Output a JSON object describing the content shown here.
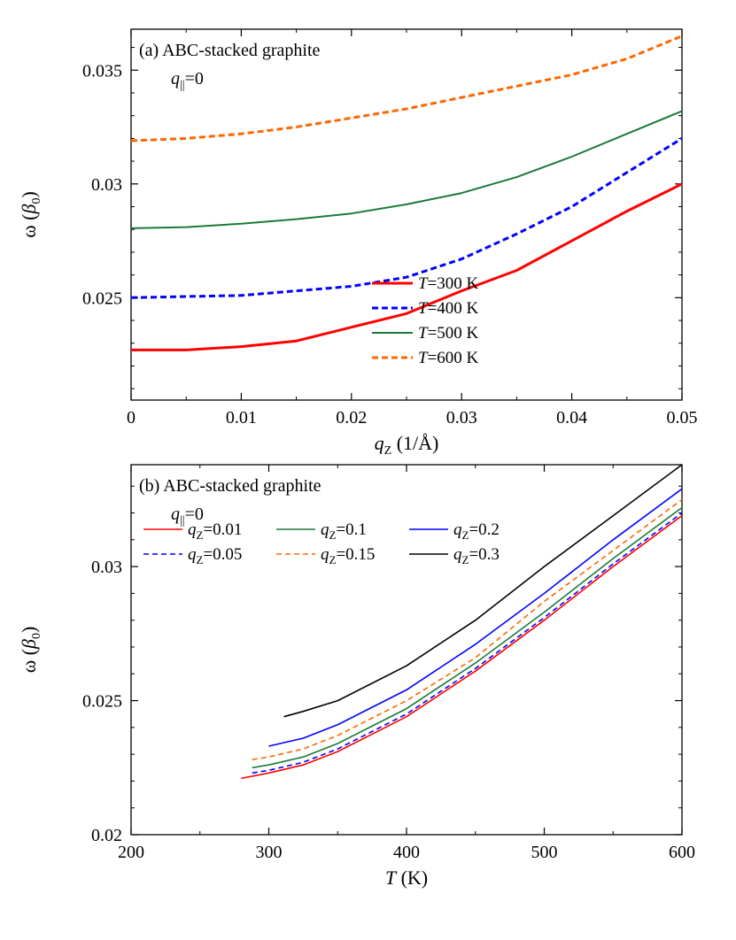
{
  "chart_data": [
    {
      "type": "line",
      "panel_label": "(a)",
      "title": "ABC-stacked graphite",
      "subtitle_var": "q",
      "subtitle_sub": "||",
      "subtitle_rest": "=0",
      "xlabel_var": "q",
      "xlabel_sub": "Z",
      "xlabel_rest": " (1/Å)",
      "ylabel_main": "ω (",
      "ylabel_var": "β",
      "ylabel_sub": "0",
      "ylabel_close": ")",
      "xlim": [
        0,
        0.05
      ],
      "ylim": [
        0.0205,
        0.0368
      ],
      "xticks": [
        0,
        0.01,
        0.02,
        0.03,
        0.04,
        0.05
      ],
      "xtick_labels": [
        "0",
        "0.01",
        "0.02",
        "0.03",
        "0.04",
        "0.05"
      ],
      "yticks": [
        0.025,
        0.03,
        0.035
      ],
      "ytick_labels": [
        "0.025",
        "0.03",
        "0.035"
      ],
      "legend_position": "bottom-right",
      "series": [
        {
          "name_var": "T",
          "name_rest": "=300 K",
          "color": "#ff0000",
          "dash": "solid",
          "width": 3,
          "x": [
            0,
            0.005,
            0.01,
            0.015,
            0.02,
            0.025,
            0.03,
            0.035,
            0.04,
            0.045,
            0.05
          ],
          "y": [
            0.0227,
            0.0227,
            0.02285,
            0.0231,
            0.0237,
            0.0243,
            0.0253,
            0.0262,
            0.0275,
            0.0288,
            0.03
          ]
        },
        {
          "name_var": "T",
          "name_rest": "=400 K",
          "color": "#0000ff",
          "dash": "dashed",
          "width": 3,
          "x": [
            0,
            0.005,
            0.01,
            0.015,
            0.02,
            0.025,
            0.03,
            0.035,
            0.04,
            0.045,
            0.05
          ],
          "y": [
            0.025,
            0.02505,
            0.0251,
            0.0253,
            0.0255,
            0.0259,
            0.0267,
            0.0278,
            0.029,
            0.0305,
            0.032
          ]
        },
        {
          "name_var": "T",
          "name_rest": "=500 K",
          "color": "#1a7a3a",
          "dash": "solid",
          "width": 2,
          "x": [
            0,
            0.005,
            0.01,
            0.015,
            0.02,
            0.025,
            0.03,
            0.035,
            0.04,
            0.045,
            0.05
          ],
          "y": [
            0.02805,
            0.0281,
            0.02825,
            0.02845,
            0.0287,
            0.0291,
            0.0296,
            0.0303,
            0.0312,
            0.0322,
            0.0332
          ]
        },
        {
          "name_var": "T",
          "name_rest": "=600 K",
          "color": "#ff6600",
          "dash": "dashed",
          "width": 3,
          "x": [
            0,
            0.005,
            0.01,
            0.015,
            0.02,
            0.025,
            0.03,
            0.035,
            0.04,
            0.045,
            0.05
          ],
          "y": [
            0.0319,
            0.032,
            0.0322,
            0.0325,
            0.0329,
            0.0333,
            0.0338,
            0.0343,
            0.0348,
            0.0355,
            0.0365
          ]
        }
      ]
    },
    {
      "type": "line",
      "panel_label": "(b)",
      "title": "ABC-stacked graphite",
      "subtitle_var": "q",
      "subtitle_sub": "||",
      "subtitle_rest": "=0",
      "xlabel_var": "T",
      "xlabel_sub": "",
      "xlabel_rest": " (K)",
      "ylabel_main": "ω (",
      "ylabel_var": "β",
      "ylabel_sub": "0",
      "ylabel_close": ")",
      "xlim": [
        200,
        600
      ],
      "ylim": [
        0.02,
        0.0338
      ],
      "xticks": [
        200,
        300,
        400,
        500,
        600
      ],
      "xtick_labels": [
        "200",
        "300",
        "400",
        "500",
        "600"
      ],
      "yticks": [
        0.02,
        0.025,
        0.03
      ],
      "ytick_labels": [
        "0.02",
        "0.025",
        "0.03"
      ],
      "legend_position": "top-left",
      "series": [
        {
          "name_var": "q",
          "name_sub": "Z",
          "name_rest": "=0.01",
          "color": "#ff0000",
          "dash": "solid",
          "width": 1.6,
          "x": [
            280,
            300,
            325,
            350,
            400,
            450,
            500,
            550,
            600
          ],
          "y": [
            0.0221,
            0.0223,
            0.0226,
            0.0231,
            0.0244,
            0.0261,
            0.028,
            0.03,
            0.0319
          ]
        },
        {
          "name_var": "q",
          "name_sub": "Z",
          "name_rest": "=0.05",
          "color": "#0000ff",
          "dash": "dashed",
          "width": 1.6,
          "x": [
            288,
            300,
            325,
            350,
            400,
            450,
            500,
            550,
            600
          ],
          "y": [
            0.0223,
            0.0224,
            0.0227,
            0.0232,
            0.0245,
            0.0262,
            0.0281,
            0.0301,
            0.032
          ]
        },
        {
          "name_var": "q",
          "name_sub": "Z",
          "name_rest": "=0.1",
          "color": "#1a7a3a",
          "dash": "solid",
          "width": 1.6,
          "x": [
            288,
            300,
            325,
            350,
            400,
            450,
            500,
            550,
            600
          ],
          "y": [
            0.0225,
            0.0226,
            0.0229,
            0.0234,
            0.0247,
            0.0264,
            0.0283,
            0.0303,
            0.0322
          ]
        },
        {
          "name_var": "q",
          "name_sub": "Z",
          "name_rest": "=0.15",
          "color": "#ff6600",
          "dash": "dashed",
          "width": 1.6,
          "x": [
            288,
            300,
            325,
            350,
            400,
            450,
            500,
            550,
            600
          ],
          "y": [
            0.0228,
            0.0229,
            0.0232,
            0.0237,
            0.025,
            0.0266,
            0.0287,
            0.0306,
            0.0325
          ]
        },
        {
          "name_var": "q",
          "name_sub": "Z",
          "name_rest": "=0.2",
          "color": "#0000ff",
          "dash": "solid",
          "width": 1.6,
          "x": [
            300,
            325,
            350,
            400,
            450,
            500,
            550,
            600
          ],
          "y": [
            0.0233,
            0.0236,
            0.0241,
            0.0254,
            0.0271,
            0.029,
            0.031,
            0.0329
          ]
        },
        {
          "name_var": "q",
          "name_sub": "Z",
          "name_rest": "=0.3",
          "color": "#000000",
          "dash": "solid",
          "width": 1.6,
          "x": [
            311,
            325,
            350,
            400,
            450,
            500,
            550,
            600
          ],
          "y": [
            0.0244,
            0.0246,
            0.025,
            0.0263,
            0.028,
            0.03,
            0.0319,
            0.0338
          ]
        }
      ]
    }
  ]
}
